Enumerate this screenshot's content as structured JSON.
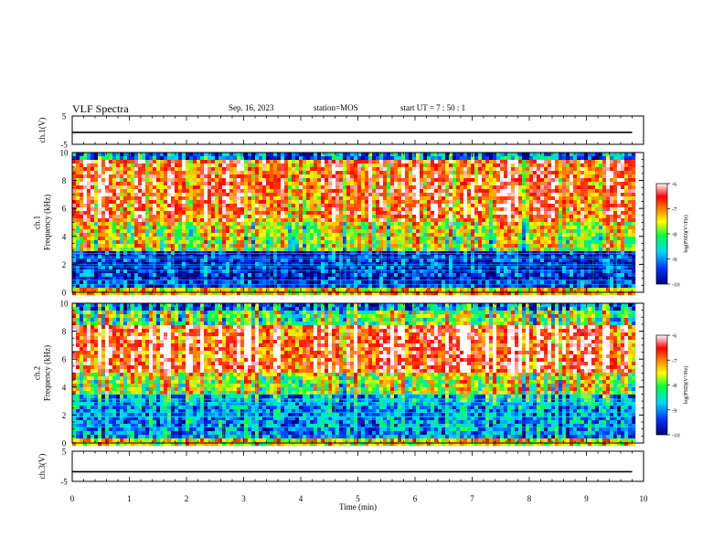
{
  "header": {
    "title": "VLF Spectra",
    "date": "Sep. 16, 2023",
    "station": "station=MOS",
    "start_ut": "start UT =  7 : 50 : 1"
  },
  "chart_data": [
    {
      "type": "line",
      "id": "ch1_voltage",
      "ylabel": "ch.1(V)",
      "ylim": [
        -5,
        5
      ],
      "yticks": [
        "5",
        "-5"
      ],
      "x": [
        0,
        1,
        2,
        3,
        4,
        5,
        6,
        7,
        8,
        9,
        9.8
      ],
      "values": [
        -0.8,
        -0.8,
        -0.8,
        -0.8,
        -0.8,
        -0.8,
        -0.8,
        -0.8,
        -0.8,
        -0.8,
        -0.8
      ],
      "xlim": [
        0,
        10
      ]
    },
    {
      "type": "heatmap",
      "id": "ch1_spectrogram",
      "ylabel": "ch.1\nFrequency (kHz)",
      "ylim": [
        0,
        10
      ],
      "yticks": [
        "0",
        "2",
        "4",
        "6",
        "8",
        "10"
      ],
      "xlim": [
        0,
        10
      ],
      "data_end_min": 9.8,
      "colorbar": {
        "label": "log(PSD)(V²/Hz)",
        "range": [
          -10,
          -6
        ],
        "ticks": [
          "-6",
          "-7",
          "-8",
          "-9",
          "-10"
        ]
      },
      "colors": [
        "#00007a",
        "#0030ff",
        "#00d8ff",
        "#00ff40",
        "#ffff00",
        "#ff8000",
        "#ff0000",
        "#ffffff"
      ]
    },
    {
      "type": "heatmap",
      "id": "ch2_spectrogram",
      "ylabel": "ch.2\nFrequency (kHz)",
      "ylim": [
        0,
        10
      ],
      "yticks": [
        "0",
        "2",
        "4",
        "6",
        "8",
        "10"
      ],
      "xlim": [
        0,
        10
      ],
      "data_end_min": 9.8,
      "colorbar": {
        "label": "log(PSD)(V²/Hz)",
        "range": [
          -10,
          -6
        ],
        "ticks": [
          "-6",
          "-7",
          "-8",
          "-9",
          "-10"
        ]
      },
      "colors": [
        "#00007a",
        "#0030ff",
        "#00d8ff",
        "#00ff40",
        "#ffff00",
        "#ff8000",
        "#ff0000",
        "#ffffff"
      ]
    },
    {
      "type": "line",
      "id": "ch3_voltage",
      "ylabel": "ch.3(V)",
      "ylim": [
        -5,
        5
      ],
      "yticks": [
        "5",
        "-5"
      ],
      "x": [
        0,
        1,
        2,
        3,
        4,
        5,
        6,
        7,
        8,
        9,
        9.8
      ],
      "values": [
        -1.8,
        -1.8,
        -1.8,
        -1.8,
        -1.8,
        -1.8,
        -1.8,
        -1.8,
        -1.8,
        -1.8,
        -1.8
      ],
      "xlim": [
        0,
        10
      ],
      "xlabel": "Time (min)",
      "xticks": [
        "0",
        "1",
        "2",
        "3",
        "4",
        "5",
        "6",
        "7",
        "8",
        "9",
        "10"
      ]
    }
  ]
}
